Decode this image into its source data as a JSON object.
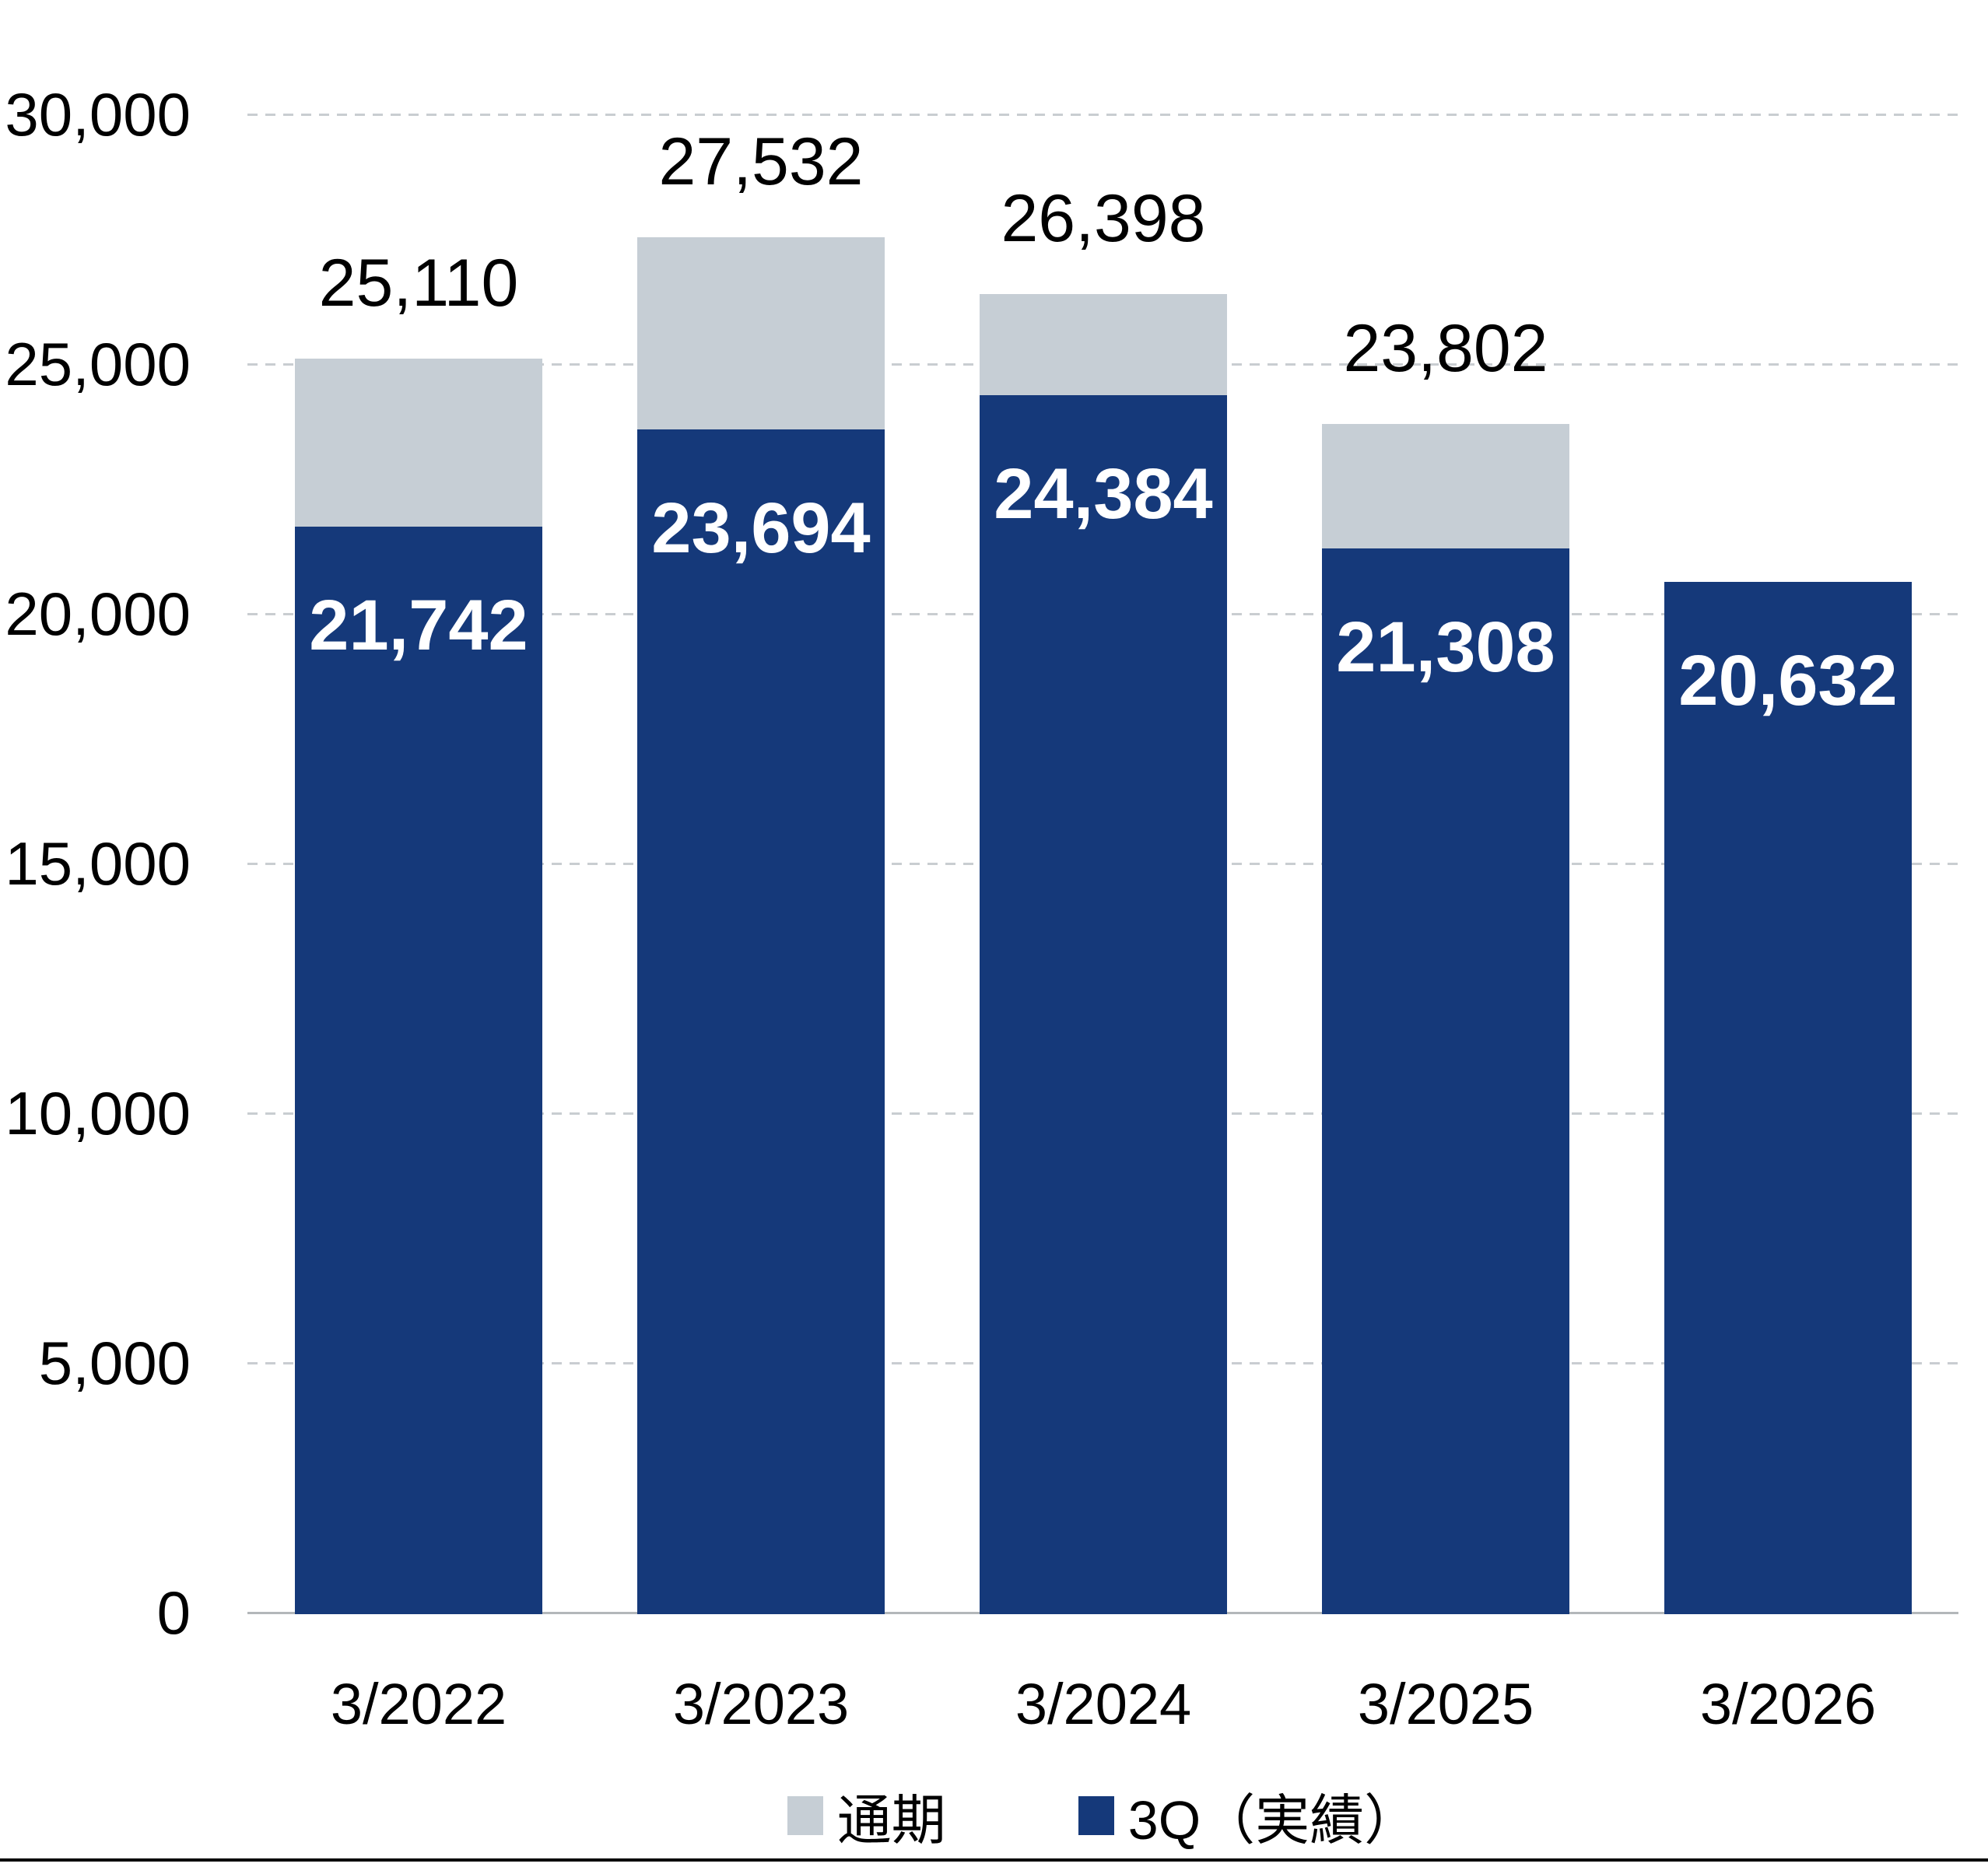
{
  "chart_data": {
    "type": "bar",
    "stacked": true,
    "title": "",
    "categories": [
      "3/2022",
      "3/2023",
      "3/2024",
      "3/2025",
      "3/2026"
    ],
    "series": [
      {
        "name": "通期",
        "color": "#c6ced5",
        "values": [
          25110,
          27532,
          26398,
          23802,
          null
        ]
      },
      {
        "name": "3Q（実績）",
        "color": "#15397a",
        "values": [
          21742,
          23694,
          24384,
          21308,
          20632
        ]
      }
    ],
    "value_labels": {
      "total": [
        "25,110",
        "27,532",
        "26,398",
        "23,802",
        null
      ],
      "q3": [
        "21,742",
        "23,694",
        "24,384",
        "21,308",
        "20,632"
      ]
    },
    "ylim": [
      0,
      30000
    ],
    "ytick_interval": 5000,
    "ytick_labels": [
      "0",
      "5,000",
      "10,000",
      "15,000",
      "20,000",
      "25,000",
      "30,000"
    ],
    "grid": "horizontal-dashed",
    "legend_position": "bottom-center"
  },
  "legend": {
    "items": [
      {
        "label": "通期"
      },
      {
        "label": "3Q（実績）"
      }
    ]
  },
  "colors": {
    "full_year": "#c6ced5",
    "q3_actual": "#15397a",
    "gridline": "#c9cdd1",
    "axis_line": "#b3b7ba",
    "bottom_rule": "#000000"
  }
}
